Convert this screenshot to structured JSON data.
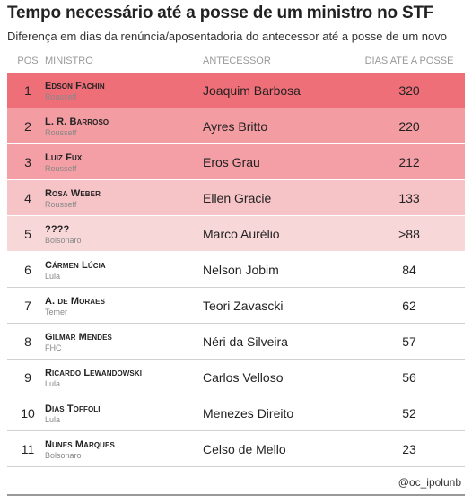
{
  "title": "Tempo necessário até a posse de um ministro no STF",
  "subtitle": "Diferença em dias da renúncia/aposentadoria do antecessor até a posse de um novo",
  "columns": {
    "pos": "POS",
    "ministro": "MINISTRO",
    "antecessor": "ANTECESSOR",
    "dias": "DIAS ATÉ A POSSE"
  },
  "credit": "@oc_ipolunb",
  "colors": {
    "scale_max": "#ef6f78",
    "scale_min": "#f8d7d9",
    "rule": "#d0d0d0"
  },
  "chart_data": {
    "type": "table",
    "heat_column": "dias",
    "rows": [
      {
        "pos": "1",
        "ministro": "Edson Fachin",
        "nomeado_por": "Rousseff",
        "antecessor": "Joaquim Barbosa",
        "dias": "320",
        "value": 320,
        "highlight": true
      },
      {
        "pos": "2",
        "ministro": "L. R. Barroso",
        "nomeado_por": "Rousseff",
        "antecessor": "Ayres Britto",
        "dias": "220",
        "value": 220,
        "highlight": true
      },
      {
        "pos": "3",
        "ministro": "Luiz Fux",
        "nomeado_por": "Rousseff",
        "antecessor": "Eros Grau",
        "dias": "212",
        "value": 212,
        "highlight": true
      },
      {
        "pos": "4",
        "ministro": "Rosa Weber",
        "nomeado_por": "Rousseff",
        "antecessor": "Ellen Gracie",
        "dias": "133",
        "value": 133,
        "highlight": true
      },
      {
        "pos": "5",
        "ministro": "????",
        "nomeado_por": "Bolsonaro",
        "antecessor": "Marco Aurélio",
        "dias": ">88",
        "value": 88,
        "highlight": true
      },
      {
        "pos": "6",
        "ministro": "Cármen Lúcia",
        "nomeado_por": "Lula",
        "antecessor": "Nelson Jobim",
        "dias": "84",
        "value": 84,
        "highlight": false
      },
      {
        "pos": "7",
        "ministro": "A. de Moraes",
        "nomeado_por": "Temer",
        "antecessor": "Teori Zavascki",
        "dias": "62",
        "value": 62,
        "highlight": false
      },
      {
        "pos": "8",
        "ministro": "Gilmar Mendes",
        "nomeado_por": "FHC",
        "antecessor": "Néri da Silveira",
        "dias": "57",
        "value": 57,
        "highlight": false
      },
      {
        "pos": "9",
        "ministro": "Ricardo Lewandowski",
        "nomeado_por": "Lula",
        "antecessor": "Carlos Velloso",
        "dias": "56",
        "value": 56,
        "highlight": false
      },
      {
        "pos": "10",
        "ministro": "Dias Toffoli",
        "nomeado_por": "Lula",
        "antecessor": "Menezes Direito",
        "dias": "52",
        "value": 52,
        "highlight": false
      },
      {
        "pos": "11",
        "ministro": "Nunes Marques",
        "nomeado_por": "Bolsonaro",
        "antecessor": "Celso de Mello",
        "dias": "23",
        "value": 23,
        "highlight": false
      }
    ]
  }
}
